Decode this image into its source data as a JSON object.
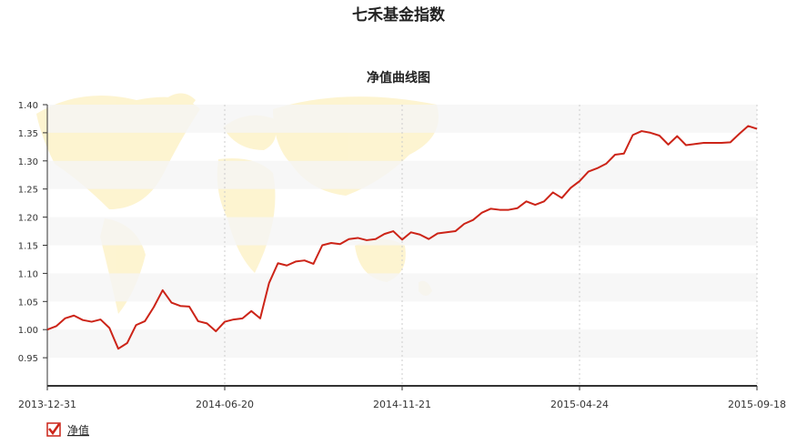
{
  "chart_data": {
    "type": "line",
    "title": "七禾基金指数",
    "subtitle": "净值曲线图",
    "categories": [
      "2013-12-31",
      null,
      null,
      null,
      null,
      null,
      null,
      null,
      null,
      null,
      null,
      null,
      null,
      null,
      null,
      null,
      null,
      null,
      null,
      null,
      "2014-06-20",
      null,
      null,
      null,
      null,
      null,
      null,
      null,
      null,
      null,
      null,
      null,
      null,
      null,
      null,
      null,
      null,
      null,
      null,
      null,
      "2014-11-21",
      null,
      null,
      null,
      null,
      null,
      null,
      null,
      null,
      null,
      null,
      null,
      null,
      null,
      null,
      null,
      null,
      null,
      null,
      null,
      "2015-04-24",
      null,
      null,
      null,
      null,
      null,
      null,
      null,
      null,
      null,
      null,
      null,
      null,
      null,
      null,
      null,
      null,
      null,
      null,
      null,
      "2015-09-18"
    ],
    "series": [
      {
        "name": "净值",
        "color": "#cc2418",
        "values": [
          1.0,
          1.006,
          1.02,
          1.025,
          1.017,
          1.014,
          1.018,
          1.003,
          0.966,
          0.976,
          1.008,
          1.015,
          1.04,
          1.07,
          1.048,
          1.042,
          1.041,
          1.015,
          1.011,
          0.997,
          1.014,
          1.018,
          1.02,
          1.033,
          1.02,
          1.083,
          1.118,
          1.114,
          1.121,
          1.123,
          1.117,
          1.15,
          1.154,
          1.152,
          1.161,
          1.163,
          1.159,
          1.161,
          1.17,
          1.175,
          1.16,
          1.173,
          1.169,
          1.161,
          1.171,
          1.173,
          1.175,
          1.188,
          1.195,
          1.208,
          1.215,
          1.213,
          1.213,
          1.216,
          1.228,
          1.222,
          1.228,
          1.244,
          1.234,
          1.252,
          1.264,
          1.281,
          1.287,
          1.295,
          1.311,
          1.313,
          1.346,
          1.353,
          1.35,
          1.345,
          1.329,
          1.344,
          1.328,
          1.33,
          1.332,
          1.332,
          1.332,
          1.333,
          1.348,
          1.362,
          1.357
        ]
      }
    ],
    "ylim": [
      0.9,
      1.4
    ],
    "yticks": [
      0.95,
      {
        "value": 1.0,
        "label": "1.00"
      },
      1.05,
      {
        "value": 1.1,
        "label": "1.10"
      },
      1.15,
      {
        "value": 1.2,
        "label": "1.20"
      },
      1.25,
      {
        "value": 1.3,
        "label": "1.30"
      },
      1.35,
      {
        "value": 1.4,
        "label": "1.40"
      }
    ],
    "grid": true
  }
}
